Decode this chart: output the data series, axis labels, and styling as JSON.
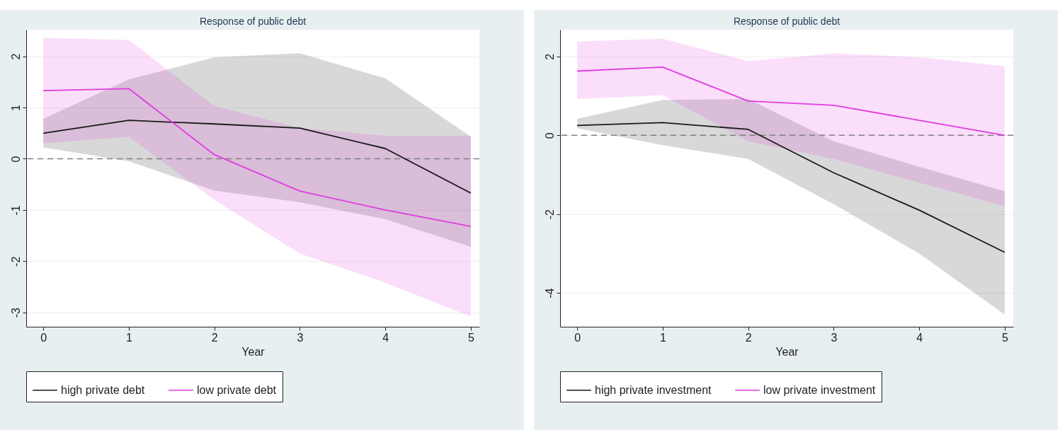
{
  "chart_data": [
    {
      "type": "line",
      "title": "Response of public debt",
      "xlabel": "Year",
      "x": [
        0,
        1,
        2,
        3,
        4,
        5
      ],
      "xlim": [
        -0.2,
        5.1
      ],
      "xticks": [
        0,
        1,
        2,
        3,
        4,
        5
      ],
      "ylim": [
        -3.28,
        2.52
      ],
      "yticks": [
        -3,
        -2,
        -1,
        0,
        1,
        2
      ],
      "grid": "y",
      "legend": "bottom",
      "line_style": "solid",
      "ref_lines": [
        {
          "axis": "y",
          "value": 0,
          "color": "#7f7f7f",
          "line_style": "dashed"
        }
      ],
      "series": [
        {
          "name": "high private debt",
          "color": "#1a1a1a",
          "values": [
            0.5,
            0.75,
            0.68,
            0.6,
            0.2,
            -0.67
          ],
          "lower": [
            0.22,
            -0.05,
            -0.62,
            -0.85,
            -1.18,
            -1.72
          ],
          "upper": [
            0.78,
            1.55,
            1.98,
            2.06,
            1.57,
            0.43
          ]
        },
        {
          "name": "low private debt",
          "color": "#e03ce0",
          "values": [
            1.33,
            1.37,
            0.08,
            -0.63,
            -1.0,
            -1.32
          ],
          "lower": [
            0.3,
            0.43,
            -0.8,
            -1.85,
            -2.42,
            -3.08
          ],
          "upper": [
            2.36,
            2.32,
            1.03,
            0.6,
            0.45,
            0.45
          ]
        }
      ]
    },
    {
      "type": "line",
      "title": "Response of public debt",
      "xlabel": "Year",
      "x": [
        0,
        1,
        2,
        3,
        4,
        5
      ],
      "xlim": [
        -0.2,
        5.1
      ],
      "xticks": [
        0,
        1,
        2,
        3,
        4,
        5
      ],
      "ylim": [
        -4.86,
        2.68
      ],
      "yticks": [
        -4,
        -2,
        0,
        2
      ],
      "grid": "y",
      "legend": "bottom",
      "line_style": "solid",
      "ref_lines": [
        {
          "axis": "y",
          "value": 0,
          "color": "#7f7f7f",
          "line_style": "dashed"
        }
      ],
      "series": [
        {
          "name": "high private investment",
          "color": "#1a1a1a",
          "values": [
            0.25,
            0.32,
            0.15,
            -0.95,
            -1.9,
            -2.97
          ],
          "lower": [
            0.18,
            -0.25,
            -0.6,
            -1.75,
            -3.0,
            -4.55
          ],
          "upper": [
            0.42,
            0.9,
            0.92,
            -0.15,
            -0.8,
            -1.42
          ]
        },
        {
          "name": "low private investment",
          "color": "#e03ce0",
          "values": [
            1.63,
            1.73,
            0.87,
            0.76,
            0.38,
            0.0
          ],
          "lower": [
            0.92,
            1.02,
            -0.15,
            -0.6,
            -1.2,
            -1.8
          ],
          "upper": [
            2.38,
            2.45,
            1.88,
            2.08,
            1.98,
            1.75
          ]
        }
      ]
    }
  ]
}
